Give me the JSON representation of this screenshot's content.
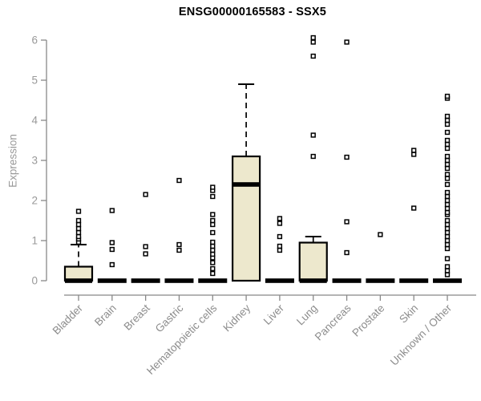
{
  "chart_data": {
    "type": "box",
    "title": "ENSG00000165583 - SSX5",
    "xlabel": "",
    "ylabel": "Expression",
    "ylim": [
      0,
      6
    ],
    "yticks": [
      0,
      1,
      2,
      3,
      4,
      5,
      6
    ],
    "grid": false,
    "legend": "none",
    "box_fill": "#ede8cd",
    "box_stroke": "#000000",
    "axis_color": "#888888",
    "tick_label_color": "#999999",
    "category_label_color": "#8c8c8c",
    "title_color": "#000000",
    "outlier_marker": "open-square",
    "categories": [
      "Bladder",
      "Brain",
      "Breast",
      "Gastric",
      "Hematopoietic cells",
      "Kidney",
      "Liver",
      "Lung",
      "Pancreas",
      "Prostate",
      "Skin",
      "Unknown / Other"
    ],
    "series": [
      {
        "category": "Bladder",
        "q1": 0,
        "median": 0,
        "q3": 0.35,
        "whisker_low": 0,
        "whisker_high": 0.9,
        "outliers": [
          0.96,
          1.04,
          1.1,
          1.2,
          1.3,
          1.4,
          1.5,
          1.73
        ]
      },
      {
        "category": "Brain",
        "q1": 0,
        "median": 0,
        "q3": 0,
        "whisker_low": 0,
        "whisker_high": 0,
        "outliers": [
          0.4,
          0.78,
          0.95,
          1.75
        ]
      },
      {
        "category": "Breast",
        "q1": 0,
        "median": 0,
        "q3": 0,
        "whisker_low": 0,
        "whisker_high": 0,
        "outliers": [
          0.67,
          0.85,
          2.15
        ]
      },
      {
        "category": "Gastric",
        "q1": 0,
        "median": 0,
        "q3": 0,
        "whisker_low": 0,
        "whisker_high": 0,
        "outliers": [
          0.76,
          0.9,
          2.5
        ]
      },
      {
        "category": "Hematopoietic cells",
        "q1": 0,
        "median": 0,
        "q3": 0,
        "whisker_low": 0,
        "whisker_high": 0,
        "outliers": [
          0.18,
          0.3,
          0.45,
          0.57,
          0.66,
          0.76,
          0.86,
          0.96,
          1.2,
          1.4,
          1.5,
          1.65,
          2.1,
          2.25,
          2.33
        ]
      },
      {
        "category": "Kidney",
        "q1": 0,
        "median": 2.4,
        "q3": 3.1,
        "whisker_low": 0,
        "whisker_high": 4.9,
        "outliers": []
      },
      {
        "category": "Liver",
        "q1": 0,
        "median": 0,
        "q3": 0,
        "whisker_low": 0,
        "whisker_high": 0,
        "outliers": [
          0.76,
          0.86,
          1.1,
          1.43,
          1.55
        ]
      },
      {
        "category": "Lung",
        "q1": 0,
        "median": 0,
        "q3": 0.95,
        "whisker_low": 0,
        "whisker_high": 1.1,
        "outliers": [
          3.1,
          3.63,
          5.6,
          5.95,
          6.06
        ]
      },
      {
        "category": "Pancreas",
        "q1": 0,
        "median": 0,
        "q3": 0,
        "whisker_low": 0,
        "whisker_high": 0,
        "outliers": [
          0.7,
          1.47,
          3.08,
          5.95
        ]
      },
      {
        "category": "Prostate",
        "q1": 0,
        "median": 0,
        "q3": 0,
        "whisker_low": 0,
        "whisker_high": 0,
        "outliers": [
          1.15
        ]
      },
      {
        "category": "Skin",
        "q1": 0,
        "median": 0,
        "q3": 0,
        "whisker_low": 0,
        "whisker_high": 0,
        "outliers": [
          1.81,
          3.15,
          3.25
        ]
      },
      {
        "category": "Unknown / Other",
        "q1": 0,
        "median": 0,
        "q3": 0,
        "whisker_low": 0,
        "whisker_high": 0,
        "outliers": [
          0.15,
          0.25,
          0.35,
          0.55,
          0.8,
          0.9,
          1.0,
          1.1,
          1.2,
          1.3,
          1.4,
          1.5,
          1.65,
          1.7,
          1.8,
          1.9,
          2.0,
          2.1,
          2.2,
          2.4,
          2.55,
          2.65,
          2.8,
          2.9,
          3.0,
          3.1,
          3.3,
          3.4,
          3.5,
          3.7,
          3.9,
          4.0,
          4.1,
          4.55,
          4.6
        ]
      }
    ]
  }
}
